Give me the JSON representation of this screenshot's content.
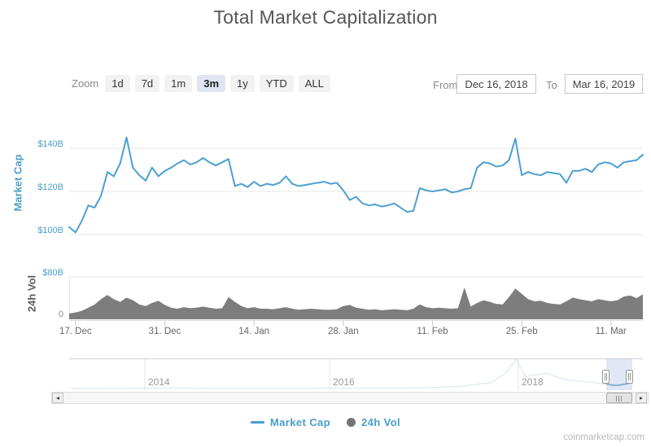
{
  "title": "Total Market Capitalization",
  "watermark": "coinmarketcap.com",
  "range_selector": {
    "zoom_label": "Zoom",
    "buttons": [
      "1d",
      "7d",
      "1m",
      "3m",
      "1y",
      "YTD",
      "ALL"
    ],
    "selected": "3m",
    "from_label": "From",
    "from_value": "Dec 16, 2018",
    "to_label": "To",
    "to_value": "Mar 16, 2019"
  },
  "legend": {
    "items": [
      {
        "label": "Market Cap",
        "marker": "line",
        "color": "#4d9fd2"
      },
      {
        "label": "24h Vol",
        "marker": "circle",
        "color": "#757575"
      }
    ]
  },
  "navigator": {
    "year_labels": [
      "2014",
      "2016",
      "2018"
    ],
    "selection_from": "Dec 16, 2018",
    "selection_to": "Mar 16, 2019",
    "history_preview_points": [
      [
        2013.2,
        1
      ],
      [
        2013.9,
        10
      ],
      [
        2014.5,
        6
      ],
      [
        2015.3,
        4
      ],
      [
        2016.0,
        8
      ],
      [
        2016.5,
        12
      ],
      [
        2017.0,
        18
      ],
      [
        2017.4,
        60
      ],
      [
        2017.6,
        120
      ],
      [
        2017.75,
        170
      ],
      [
        2017.9,
        420
      ],
      [
        2018.02,
        830
      ],
      [
        2018.12,
        340
      ],
      [
        2018.35,
        430
      ],
      [
        2018.55,
        250
      ],
      [
        2018.7,
        210
      ],
      [
        2018.85,
        180
      ],
      [
        2018.95,
        130
      ],
      [
        2019.0,
        128
      ],
      [
        2019.05,
        120
      ],
      [
        2019.1,
        112
      ],
      [
        2019.15,
        122
      ],
      [
        2019.21,
        135
      ]
    ]
  },
  "chart_data": {
    "type": "line+area",
    "title": "Total Market Capitalization",
    "x_label": "date",
    "x_tick_labels": [
      "17. Dec",
      "31. Dec",
      "14. Jan",
      "28. Jan",
      "11. Feb",
      "25. Feb",
      "11. Mar"
    ],
    "dates": {
      "start": "2018-12-16",
      "end": "2019-03-16",
      "freq": "daily",
      "count": 91
    },
    "panes": [
      {
        "type": "line",
        "name": "Market Cap",
        "ylabel": "Market Cap",
        "unit": "USD billions",
        "color": "#4d9fd2",
        "y_tick_labels": [
          "$140B",
          "$120B",
          "$100B"
        ],
        "y_tick_values": [
          140,
          120,
          100
        ],
        "ylim": [
          98,
          148
        ],
        "values": [
          103.5,
          101,
          106.5,
          113.5,
          112.5,
          118,
          129,
          127,
          133,
          145,
          131,
          127.5,
          125,
          131,
          127,
          129.5,
          131,
          133,
          134.5,
          132.5,
          133.5,
          135.5,
          133.5,
          132,
          133.5,
          135,
          122.5,
          123.5,
          122,
          124.5,
          122.5,
          123.5,
          123,
          124,
          127,
          123.5,
          122.5,
          123,
          123.5,
          124,
          124.5,
          123.5,
          124,
          120.5,
          116,
          117.5,
          114.5,
          113.5,
          114,
          113,
          113.5,
          114.5,
          112.5,
          110.5,
          111,
          121.5,
          120.5,
          120,
          120.5,
          121,
          119.5,
          120,
          121,
          121.5,
          131,
          133.5,
          133,
          131.5,
          132,
          134.5,
          144.5,
          127.5,
          129,
          128,
          127.5,
          129,
          128.5,
          128,
          124,
          129.5,
          129.5,
          130.5,
          129,
          132.5,
          133.5,
          133,
          131,
          133.5,
          134,
          134.5,
          137
        ]
      },
      {
        "type": "area",
        "name": "24h Vol",
        "ylabel": "24h Vol",
        "unit": "USD billions",
        "color": "#7d7d7d",
        "y_tick_labels": [
          "$80B",
          "0"
        ],
        "y_tick_values": [
          80,
          0
        ],
        "ylim": [
          0,
          80
        ],
        "values": [
          11,
          13,
          16,
          22,
          28,
          38,
          46,
          38,
          33,
          41,
          36,
          28,
          25,
          31,
          35,
          27,
          22,
          20,
          23,
          21,
          22,
          24,
          22,
          20,
          21,
          42,
          33,
          25,
          21,
          23,
          20,
          20,
          19,
          21,
          23,
          20,
          18,
          19,
          20,
          19,
          18,
          18,
          19,
          25,
          27,
          22,
          20,
          18,
          19,
          17,
          18,
          19,
          18,
          17,
          20,
          28,
          23,
          21,
          22,
          21,
          20,
          21,
          60,
          24,
          31,
          36,
          33,
          29,
          28,
          42,
          58,
          48,
          38,
          34,
          35,
          31,
          29,
          28,
          34,
          41,
          38,
          36,
          34,
          38,
          36,
          34,
          36,
          43,
          45,
          40,
          47
        ]
      }
    ]
  }
}
